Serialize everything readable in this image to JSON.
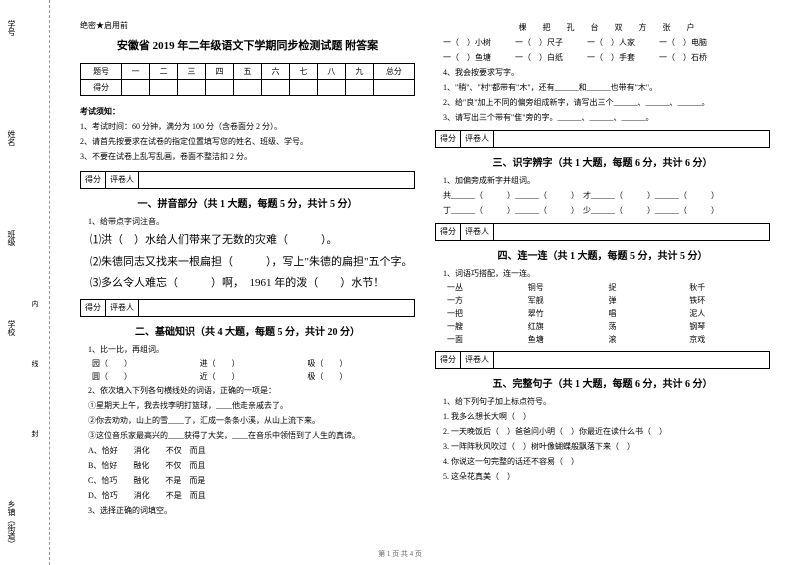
{
  "header": {
    "confidential": "绝密★启用前",
    "title": "安徽省 2019 年二年级语文下学期同步检测试题 附答案"
  },
  "binding": {
    "l1": "学号",
    "l2": "姓名",
    "l3": "班级",
    "l4": "学校",
    "l5": "",
    "l6": "乡镇（街道）",
    "inner1": "内",
    "inner2": "线",
    "inner3": "封"
  },
  "score_table": {
    "row1": [
      "题号",
      "一",
      "二",
      "三",
      "四",
      "五",
      "六",
      "七",
      "八",
      "九",
      "总分"
    ],
    "row2_label": "得分"
  },
  "notice": {
    "heading": "考试须知：",
    "items": [
      "1、考试时间：60 分钟，满分为 100 分（含卷面分 2 分）。",
      "2、请首先按要求在试卷的指定位置填写您的姓名、班级、学号。",
      "3、不要在试卷上乱写乱画，卷面不整洁扣 2 分。"
    ]
  },
  "bar": {
    "c1": "得分",
    "c2": "评卷人"
  },
  "s1": {
    "title": "一、拼音部分（共 1 大题，每题 5 分，共计 5 分）",
    "lead": "1、给带点字词注音。",
    "i1": "⑴洪（　）水给人们带来了无数的灾难（　　　）。",
    "i2": "⑵朱德同志又找来一根扁担（　　　），写上\"朱德的扁担\"五个字。",
    "i3": "⑶多么令人难忘（　　　）啊，　1961 年的泼（　　）水节！"
  },
  "s2": {
    "title": "二、基础知识（共 4 大题，每题 5 分，共计 20 分）",
    "q1": "1、比一比，再组词。",
    "q1_rows": [
      [
        "园（　　）",
        "进（　　）",
        "吸（　　）"
      ],
      [
        "圆（　　）",
        "近（　　）",
        "极（　　）"
      ]
    ],
    "q2": "2、依次填入下列各句横线处的词语，正确的一项是：",
    "q2_lines": [
      "①星期天上午，我去找李明打篮球，____他走亲戚去了。",
      "②你去劝劝，山上的雪____了，汇成一条条小溪，从山上流下来。",
      "③这位音乐家最高兴的____获得了大奖，____在音乐中领悟到了人生的真谛。"
    ],
    "q2_opts": [
      "A、恰好　　消化　　不仅　而且",
      "B、恰好　　融化　　不仅　而且",
      "C、恰巧　　融化　　不是　而是",
      "D、恰巧　　消化　　不是　而且"
    ],
    "q3": "3、选择正确的词填空。"
  },
  "right_top": {
    "row1": "棵　　把　　孔　　台　　双　　方　　张　　户",
    "row2": "一（　）小树　　　一（　）尺子　　　一（　）人家　　　一（　）电脑",
    "row3": "一（　）鱼塘　　　一（　）白纸　　　一（　）手套　　　一（　）石桥"
  },
  "s_right1": {
    "lead": "4、我会按要求写字。",
    "i1": "1、\"稍\"、\"村\"都带有\"木\"，还有______和______也带有\"木\"。",
    "i2": "2、给\"良\"加上不同的偏旁组成新字，请写出三个______、______、______。",
    "i3": "3、请写出三个带有\"隹\"旁的字。______、______、______。"
  },
  "s3": {
    "title": "三、识字辨字（共 1 大题，每题 6 分，共计 6 分）",
    "lead": "1、加偏旁成新字并组词。",
    "rows": [
      "共______（　　　）______（　　　）　才______（　　　）______（　　　）",
      "丁______（　　　）______（　　　）　少______（　　　）______（　　　）"
    ]
  },
  "s4": {
    "title": "四、连一连（共 1 大题，每题 5 分，共计 5 分）",
    "lead": "1、词语巧搭配，连一连。",
    "pairs": [
      [
        "一丛",
        "铜号",
        "捉",
        "秋千"
      ],
      [
        "一方",
        "军舰",
        "弹",
        "铁环"
      ],
      [
        "一把",
        "翠竹",
        "唱",
        "泥人"
      ],
      [
        "一艘",
        "红旗",
        "荡",
        "钢琴"
      ],
      [
        "一面",
        "鱼塘",
        "滚",
        "京戏"
      ]
    ]
  },
  "s5": {
    "title": "五、完整句子（共 1 大题，每题 6 分，共计 6 分）",
    "lead": "1、给下列句子加上标点符号。",
    "items": [
      "1. 我多么想长大啊（　）",
      "2. 一天晚饭后（　）爸爸问小明（　）你最近在读什么书（　）",
      "3. 一阵阵秋风吹过（　）树叶像蝴蝶般飘落下来（　）",
      "4. 你说这一句完整的话还不容易（　）",
      "5. 这朵花真美（　）"
    ]
  },
  "footer": "第 1 页 共 4 页"
}
